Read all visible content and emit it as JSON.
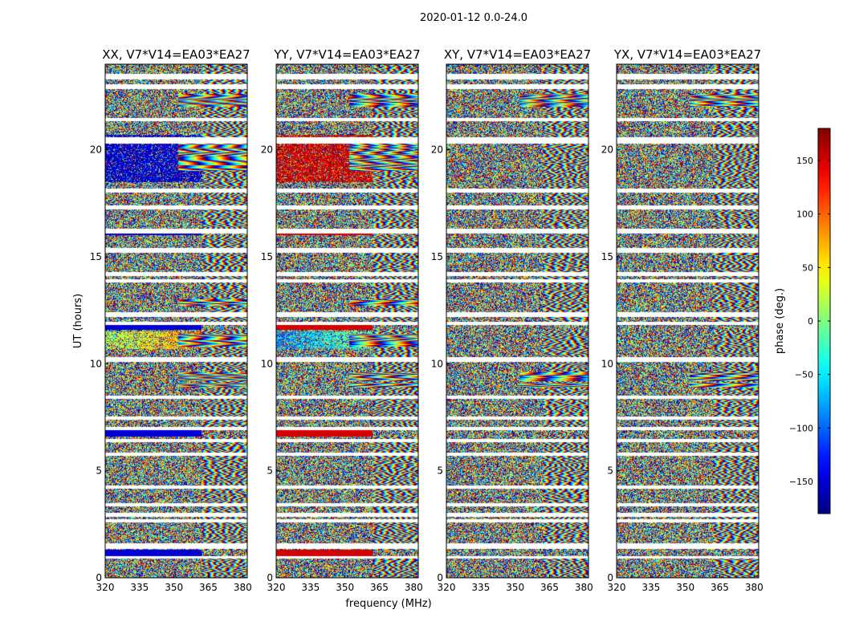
{
  "suptitle": "2020-01-12 0.0-24.0",
  "chart_data": [
    {
      "type": "heatmap",
      "title": "XX, V7*V14=EA03*EA27",
      "ylabel": "UT (hours)",
      "xlim": [
        320,
        382
      ],
      "ylim": [
        0,
        24
      ],
      "xticks": [
        320,
        335,
        350,
        365,
        380
      ],
      "yticks": [
        0,
        5,
        10,
        15,
        20
      ],
      "dominant_low_freq_phase": -150,
      "fringe_bands_ut": [
        [
          22.0,
          22.6
        ],
        [
          19.0,
          20.5
        ],
        [
          12.7,
          13.0
        ],
        [
          10.8,
          11.4
        ],
        [
          9.2,
          9.6
        ],
        [
          8.9,
          9.1
        ]
      ]
    },
    {
      "type": "heatmap",
      "title": "YY, V7*V14=EA03*EA27",
      "xlabel": "frequency (MHz)",
      "xlim": [
        320,
        382
      ],
      "ylim": [
        0,
        24
      ],
      "xticks": [
        320,
        335,
        350,
        365,
        380
      ],
      "yticks": [
        0,
        5,
        10,
        15,
        20
      ],
      "dominant_low_freq_phase": 150,
      "fringe_bands_ut": [
        [
          22.0,
          22.6
        ],
        [
          19.0,
          20.5
        ],
        [
          12.7,
          13.0
        ],
        [
          10.8,
          11.4
        ],
        [
          9.2,
          9.6
        ],
        [
          8.9,
          9.1
        ]
      ]
    },
    {
      "type": "heatmap",
      "title": "XY, V7*V14=EA03*EA27",
      "xlim": [
        320,
        382
      ],
      "ylim": [
        0,
        24
      ],
      "xticks": [
        320,
        335,
        350,
        365,
        380
      ],
      "yticks": [
        0,
        5,
        10,
        15,
        20
      ],
      "dominant_low_freq_phase": null,
      "fringe_bands_ut": [
        [
          22.0,
          22.6
        ],
        [
          9.2,
          9.6
        ],
        [
          8.9,
          9.1
        ]
      ]
    },
    {
      "type": "heatmap",
      "title": "YX, V7*V14=EA03*EA27",
      "xlim": [
        320,
        382
      ],
      "ylim": [
        0,
        24
      ],
      "xticks": [
        320,
        335,
        350,
        365,
        380
      ],
      "yticks": [
        0,
        5,
        10,
        15,
        20
      ],
      "dominant_low_freq_phase": null,
      "fringe_bands_ut": [
        [
          22.0,
          22.6
        ],
        [
          9.2,
          9.6
        ],
        [
          8.9,
          9.1
        ]
      ]
    }
  ],
  "shared": {
    "flagged_gaps_ut": [
      [
        23.3,
        23.55
      ],
      [
        22.85,
        23.05
      ],
      [
        21.35,
        21.5
      ],
      [
        20.3,
        20.6
      ],
      [
        18.0,
        18.2
      ],
      [
        17.2,
        17.4
      ],
      [
        16.1,
        16.3
      ],
      [
        15.2,
        15.4
      ],
      [
        14.1,
        14.3
      ],
      [
        13.8,
        13.95
      ],
      [
        12.2,
        12.4
      ],
      [
        11.8,
        11.95
      ],
      [
        10.1,
        10.3
      ],
      [
        8.35,
        8.5
      ],
      [
        7.4,
        7.55
      ],
      [
        6.9,
        7.05
      ],
      [
        6.35,
        6.5
      ],
      [
        5.7,
        5.85
      ],
      [
        4.15,
        4.3
      ],
      [
        3.35,
        3.5
      ],
      [
        2.85,
        3.05
      ],
      [
        2.6,
        2.75
      ],
      [
        1.35,
        1.6
      ],
      [
        0.9,
        1.0
      ]
    ],
    "flagged_bands_ut": [
      [
        16.0,
        16.3
      ],
      [
        11.6,
        11.8
      ],
      [
        6.6,
        6.95
      ],
      [
        1.0,
        1.3
      ]
    ]
  },
  "colorbar": {
    "label": "phase (deg.)",
    "range": [
      -180,
      180
    ],
    "ticks": [
      -150,
      -100,
      -50,
      0,
      50,
      100,
      150
    ],
    "tick_labels": [
      "−150",
      "−100",
      "−50",
      "0",
      "50",
      "100",
      "150"
    ],
    "colormap": "jet"
  }
}
